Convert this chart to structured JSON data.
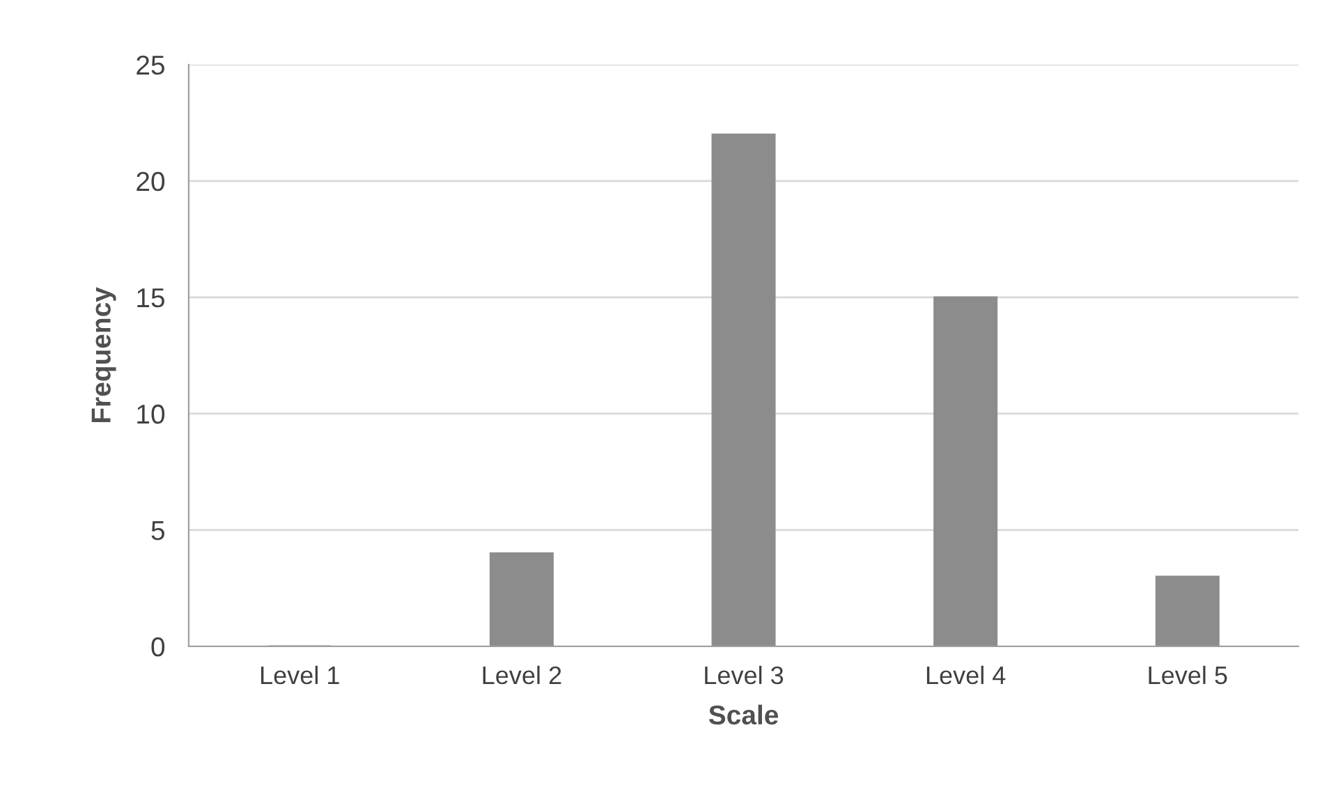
{
  "chart_data": {
    "type": "bar",
    "xlabel": "Scale",
    "ylabel": "Frequency",
    "categories": [
      "Level 1",
      "Level 2",
      "Level 3",
      "Level 4",
      "Level 5"
    ],
    "values": [
      0,
      4,
      22,
      15,
      3
    ],
    "color": "#8c8c8c",
    "ylim": [
      0,
      25
    ],
    "yticks": [
      0,
      5,
      10,
      15,
      20,
      25
    ],
    "grid": "y"
  }
}
